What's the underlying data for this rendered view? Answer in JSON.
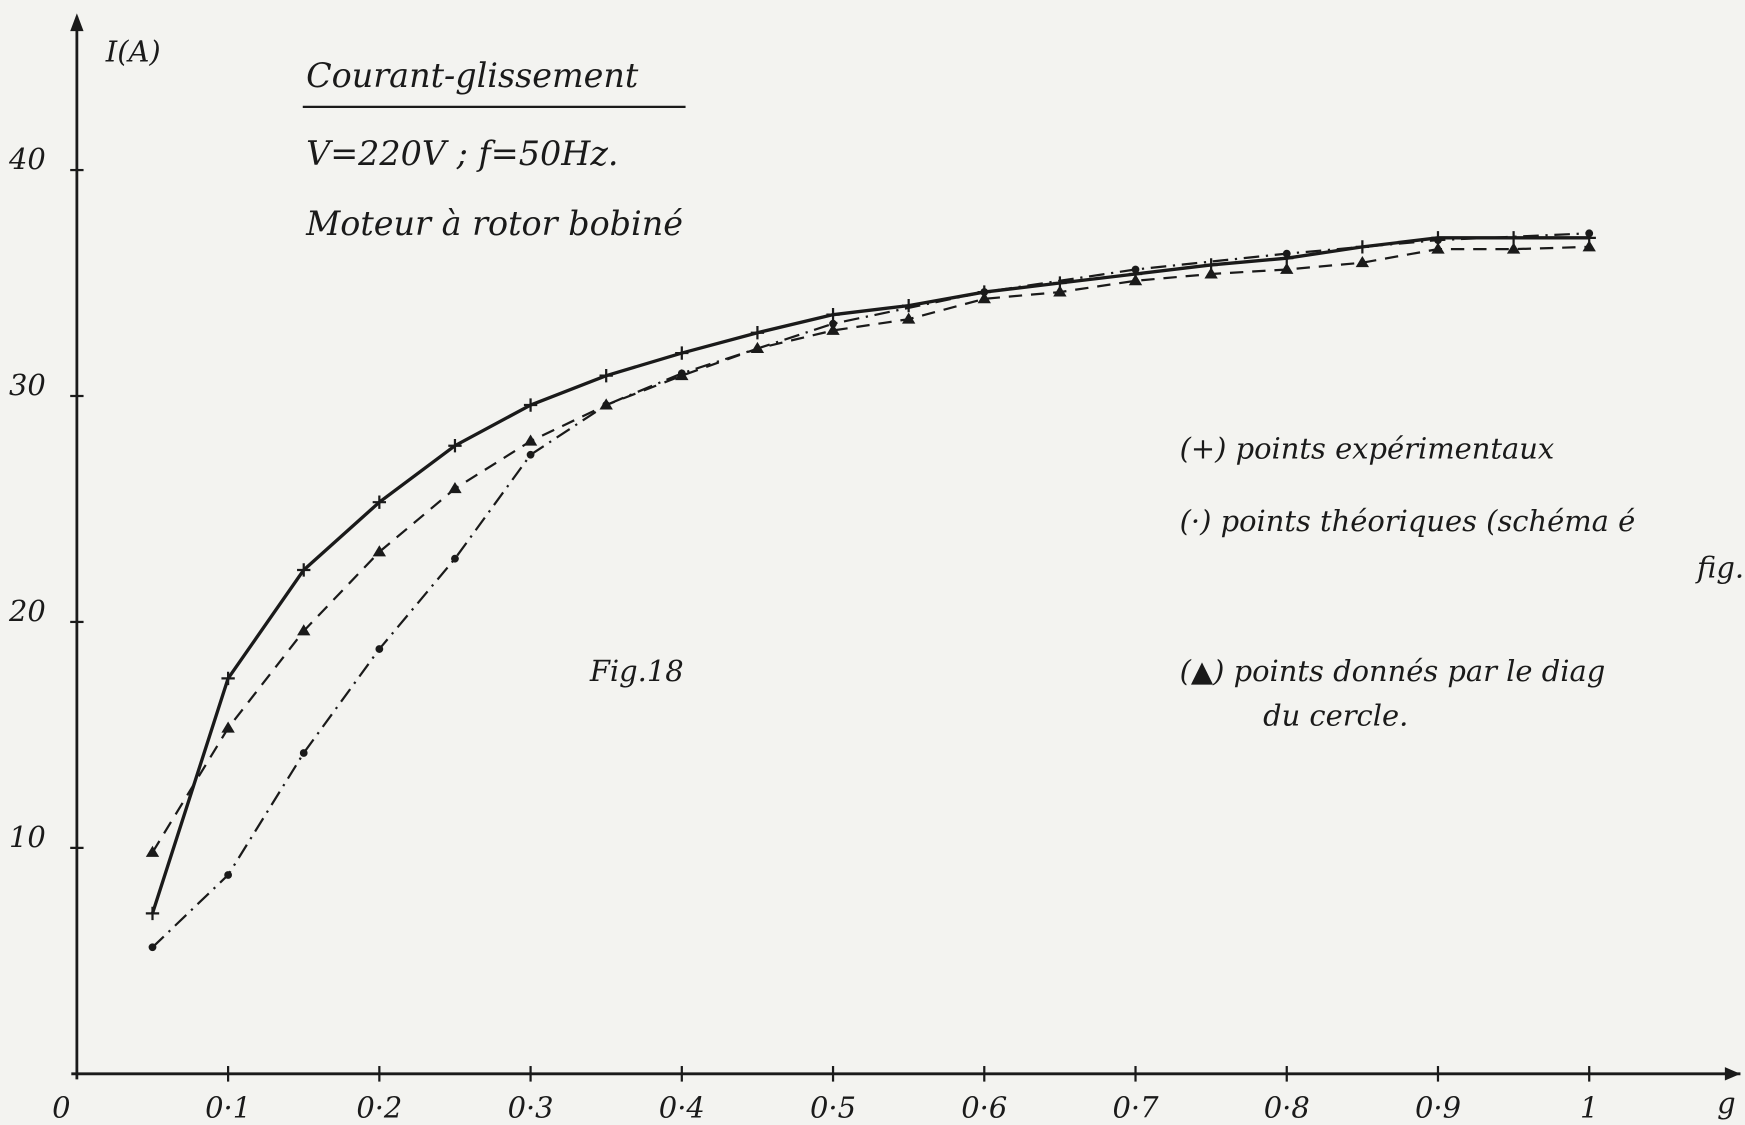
{
  "chart_data": {
    "type": "line",
    "title": "Courant-glissement",
    "subtitle": [
      "V=220V ; f=50Hz.",
      "Moteur à rotor bobiné"
    ],
    "annotations": [
      "Fig.18",
      "fig.",
      "du cercle."
    ],
    "ylabel": "I(A)",
    "xlabel": "g",
    "xlim": [
      0,
      1.1
    ],
    "ylim": [
      0,
      46
    ],
    "xticks": [
      0,
      {
        "value": 0.1,
        "label": "0·1"
      },
      {
        "value": 0.2,
        "label": "0·2"
      },
      {
        "value": 0.3,
        "label": "0·3"
      },
      {
        "value": 0.4,
        "label": "0·4"
      },
      {
        "value": 0.5,
        "label": "0·5"
      },
      {
        "value": 0.6,
        "label": "0·6"
      },
      {
        "value": 0.7,
        "label": "0·7"
      },
      {
        "value": 0.8,
        "label": "0·8"
      },
      {
        "value": 0.9,
        "label": "0·9"
      },
      1
    ],
    "yticks": [
      10,
      20,
      30,
      40
    ],
    "grid": false,
    "series": [
      {
        "name": "(+) points expérimentaux",
        "color": "#1a1a1a",
        "marker": "plus",
        "dash": "solid",
        "x": [
          0.05,
          0.1,
          0.15,
          0.2,
          0.25,
          0.3,
          0.35,
          0.4,
          0.45,
          0.5,
          0.55,
          0.6,
          0.65,
          0.7,
          0.75,
          0.8,
          0.85,
          0.9,
          0.95,
          1
        ],
        "values": [
          7.1,
          17.5,
          22.3,
          25.3,
          27.8,
          29.6,
          30.9,
          31.9,
          32.8,
          33.6,
          34.0,
          34.6,
          35.0,
          35.4,
          35.8,
          36.1,
          36.6,
          37.0,
          37.0,
          37.0
        ]
      },
      {
        "name": "(·) points théoriques (schéma é",
        "color": "#1a1a1a",
        "marker": "dot",
        "dash": "dashdot",
        "x": [
          0.05,
          0.1,
          0.15,
          0.2,
          0.25,
          0.3,
          0.35,
          0.4,
          0.5,
          0.6,
          0.7,
          0.8,
          0.9,
          1
        ],
        "values": [
          5.6,
          8.8,
          14.2,
          18.8,
          22.8,
          27.4,
          29.6,
          31.0,
          33.2,
          34.6,
          35.6,
          36.3,
          36.9,
          37.2
        ]
      },
      {
        "name": "(▲) points donnés par le diag",
        "color": "#1a1a1a",
        "marker": "triangle",
        "dash": "dashed",
        "x": [
          0.05,
          0.1,
          0.15,
          0.2,
          0.25,
          0.3,
          0.35,
          0.4,
          0.45,
          0.5,
          0.55,
          0.6,
          0.65,
          0.7,
          0.75,
          0.8,
          0.85,
          0.9,
          0.95,
          1
        ],
        "values": [
          9.8,
          15.3,
          19.6,
          23.1,
          25.9,
          28.0,
          29.6,
          30.9,
          32.1,
          32.9,
          33.4,
          34.3,
          34.6,
          35.1,
          35.4,
          35.6,
          35.9,
          36.5,
          36.5,
          36.6
        ]
      }
    ]
  }
}
